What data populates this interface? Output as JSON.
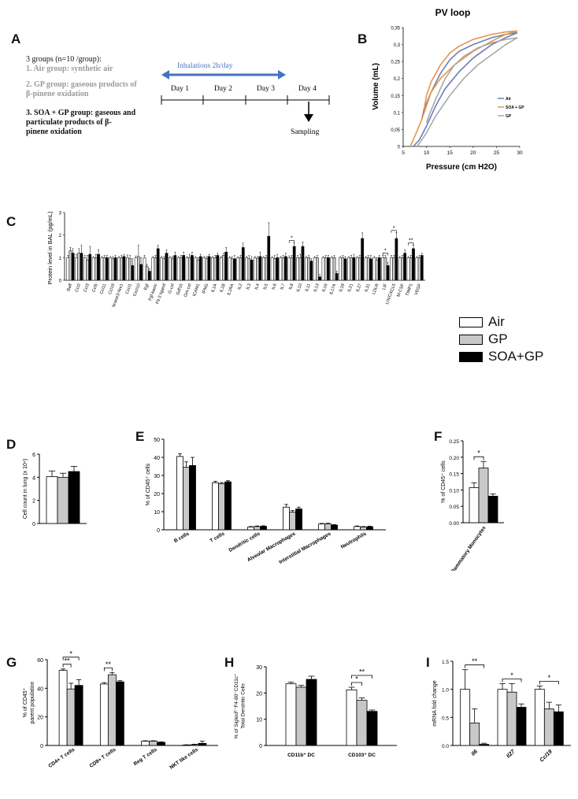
{
  "panels": {
    "A": "A",
    "B": "B",
    "C": "C",
    "D": "D",
    "E": "E",
    "F": "F",
    "G": "G",
    "H": "H",
    "I": "I"
  },
  "schema": {
    "groups_title": "3 groups (n=10 /group):",
    "items": [
      "1.  Air group: synthetic air",
      "2.  GP group: gaseous products of",
      "     β-pinene oxidation",
      "3.  SOA + GP group: gaseous and",
      "     particulate products of β-",
      "     pinene oxidation"
    ],
    "inhalation_label": "Inhalations 2h/day",
    "days": [
      "Day 1",
      "Day 2",
      "Day 3",
      "Day 4"
    ],
    "sampling_label": "Sampling",
    "colors": {
      "arrow": "#4472c4",
      "grey_text": "#9a9a9a"
    }
  },
  "legend": {
    "items": [
      {
        "name": "Air",
        "color": "#ffffff"
      },
      {
        "name": "GP",
        "color": "#c8c8c8"
      },
      {
        "name": "SOA+GP",
        "color": "#000000"
      }
    ]
  },
  "chart_data": [
    {
      "panel": "B",
      "type": "line",
      "title": "PV loop",
      "xlabel": "Pressure (cm H2O)",
      "ylabel": "Volume (mL)",
      "xlim": [
        5,
        30
      ],
      "ylim": [
        0,
        0.35
      ],
      "xticks": [
        5,
        10,
        15,
        20,
        25,
        30
      ],
      "yticks": [
        0,
        0.05,
        0.1,
        0.15,
        0.2,
        0.25,
        0.3,
        0.35
      ],
      "ytick_labels": [
        "0",
        "0,05",
        "0,1",
        "0,15",
        "0,2",
        "0,25",
        "0,3",
        "0,35"
      ],
      "legend_position": "right",
      "series": [
        {
          "name": "Air",
          "color": "#6a7fb8",
          "inflation": [
            [
              7.2,
              0
            ],
            [
              8.5,
              0.02
            ],
            [
              10,
              0.06
            ],
            [
              12,
              0.12
            ],
            [
              14,
              0.17
            ],
            [
              17,
              0.22
            ],
            [
              20,
              0.26
            ],
            [
              24,
              0.3
            ],
            [
              27,
              0.32
            ],
            [
              29.5,
              0.335
            ]
          ],
          "deflation": [
            [
              29.5,
              0.335
            ],
            [
              27,
              0.33
            ],
            [
              24,
              0.32
            ],
            [
              20,
              0.3
            ],
            [
              17,
              0.28
            ],
            [
              15,
              0.255
            ],
            [
              13,
              0.215
            ],
            [
              11,
              0.16
            ],
            [
              9.5,
              0.11
            ],
            [
              9,
              0.08
            ]
          ]
        },
        {
          "name": "SOA + GP",
          "color": "#e8944a",
          "inflation": [
            [
              6.5,
              0
            ],
            [
              7.5,
              0.03
            ],
            [
              9,
              0.08
            ],
            [
              11,
              0.16
            ],
            [
              13,
              0.2
            ],
            [
              16,
              0.24
            ],
            [
              20,
              0.28
            ],
            [
              24,
              0.31
            ],
            [
              27,
              0.33
            ],
            [
              29.5,
              0.34
            ]
          ],
          "deflation": [
            [
              29.5,
              0.34
            ],
            [
              27,
              0.337
            ],
            [
              24,
              0.33
            ],
            [
              20,
              0.315
            ],
            [
              17,
              0.295
            ],
            [
              15,
              0.275
            ],
            [
              13,
              0.24
            ],
            [
              11,
              0.19
            ],
            [
              10,
              0.15
            ],
            [
              9.5,
              0.11
            ]
          ]
        },
        {
          "name": "GP",
          "color": "#a8a8a8",
          "inflation": [
            [
              8,
              0
            ],
            [
              9,
              0.02
            ],
            [
              10,
              0.04
            ],
            [
              12,
              0.09
            ],
            [
              15,
              0.15
            ],
            [
              18,
              0.2
            ],
            [
              21,
              0.24
            ],
            [
              24,
              0.27
            ],
            [
              27,
              0.3
            ],
            [
              29.5,
              0.32
            ]
          ],
          "deflation": [
            [
              29.5,
              0.32
            ],
            [
              27,
              0.315
            ],
            [
              24,
              0.305
            ],
            [
              21,
              0.29
            ],
            [
              18,
              0.265
            ],
            [
              16,
              0.24
            ],
            [
              14,
              0.2
            ],
            [
              12,
              0.14
            ],
            [
              10.5,
              0.09
            ],
            [
              10,
              0.07
            ]
          ]
        }
      ]
    },
    {
      "panel": "C",
      "type": "bar",
      "ylabel": "Protein level in BAL (pg/mL)",
      "ylim": [
        0,
        3
      ],
      "yticks": [
        0,
        1,
        2,
        3
      ],
      "categories": [
        "Baff",
        "Ccl2",
        "Ccl3",
        "Ccl5",
        "Ccl11",
        "Ccl19",
        "Chitinase3-like1",
        "Cxcl1",
        "Cxcl10",
        "Egf",
        "Fgf-basic",
        "Flt-3 ligand",
        "G-csf",
        "Gdf15",
        "Gm-csf",
        "ICAM1",
        "IFNG",
        "IL1A",
        "IL1B",
        "IL1RA",
        "IL2",
        "IL3",
        "IL4",
        "IL5",
        "IL6",
        "IL7",
        "IL8",
        "IL10",
        "IL11",
        "IL13",
        "IL16",
        "IL17A",
        "IL18",
        "IL21",
        "IL27",
        "IL31",
        "LDLR",
        "LIF",
        "LIX/CXCL5",
        "M-CSF",
        "TIMP1",
        "VEGF"
      ],
      "series": [
        {
          "name": "Air",
          "values": [
            1,
            1,
            1,
            1,
            1,
            1,
            1,
            1,
            1,
            1,
            1,
            1,
            1,
            1,
            1,
            1,
            1,
            1,
            1,
            1,
            1,
            1,
            1,
            1,
            1,
            1,
            1,
            1,
            1,
            1,
            1,
            1,
            1,
            1,
            1,
            1,
            1,
            1,
            1,
            1,
            1,
            1
          ],
          "errors": [
            0.1,
            0.15,
            0.1,
            0.05,
            0.05,
            0.05,
            0.05,
            0.12,
            0.08,
            0.1,
            0.05,
            0.05,
            0.05,
            0.05,
            0.05,
            0.05,
            0.05,
            0.05,
            0.05,
            0.05,
            0.05,
            0.05,
            0.05,
            0.05,
            0.05,
            0.05,
            0.08,
            0.1,
            0.05,
            0.05,
            0.05,
            0.05,
            0.05,
            0.05,
            0.05,
            0.05,
            0.05,
            0.1,
            0.1,
            0.05,
            0.05,
            0.05
          ]
        },
        {
          "name": "GP",
          "values": [
            1.3,
            1.2,
            0.9,
            1.0,
            1.0,
            0.95,
            1.0,
            0.95,
            1.05,
            0.6,
            1.0,
            0.95,
            0.95,
            1.0,
            1.0,
            0.9,
            0.95,
            1.0,
            1.1,
            0.95,
            1.0,
            0.95,
            0.95,
            1.0,
            0.95,
            1.0,
            1.0,
            1.0,
            1.0,
            1.0,
            1.0,
            1.0,
            1.0,
            1.0,
            1.0,
            1.0,
            0.9,
            1.0,
            1.0,
            1.0,
            1.0,
            1.0
          ],
          "errors": [
            0.15,
            0.2,
            0.2,
            0.15,
            0.1,
            0.1,
            0.1,
            0.15,
            0.5,
            0.1,
            0.1,
            0.1,
            0.1,
            0.1,
            0.15,
            0.1,
            0.1,
            0.1,
            0.1,
            0.1,
            0.1,
            0.15,
            0.1,
            0.1,
            0.15,
            0.1,
            0.1,
            0.15,
            0.1,
            0.1,
            0.1,
            0.1,
            0.1,
            0.1,
            0.1,
            0.1,
            0.1,
            0.1,
            0.1,
            0.1,
            0.1,
            0.1
          ]
        },
        {
          "name": "SOA+GP",
          "values": [
            1.2,
            1.2,
            1.15,
            1.15,
            1.0,
            1.0,
            1.05,
            0.65,
            0.7,
            0.4,
            1.4,
            1.2,
            1.1,
            1.1,
            1.1,
            1.05,
            1.05,
            1.1,
            1.25,
            0.95,
            1.45,
            0.9,
            1.05,
            1.95,
            1.0,
            1.05,
            1.5,
            1.5,
            0.85,
            0.15,
            1.0,
            0.3,
            0.95,
            1.0,
            1.85,
            0.95,
            1.0,
            0.65,
            1.85,
            1.2,
            1.4,
            1.1
          ],
          "errors": [
            0.2,
            0.35,
            0.35,
            0.2,
            0.1,
            0.1,
            0.1,
            0.3,
            0.3,
            0.1,
            0.15,
            0.15,
            0.15,
            0.15,
            0.15,
            0.1,
            0.1,
            0.1,
            0.2,
            0.15,
            0.2,
            0.15,
            0.2,
            0.6,
            0.15,
            0.15,
            0.15,
            0.2,
            0.1,
            0.1,
            0.1,
            0.1,
            0.1,
            0.15,
            0.25,
            0.15,
            0.1,
            0.15,
            0.25,
            0.15,
            0.15,
            0.1
          ]
        }
      ],
      "annotations": [
        {
          "category": "IL8",
          "text": "*"
        },
        {
          "category": "LIF",
          "text": "*"
        },
        {
          "category": "LIX/CXCL5",
          "text": "*"
        },
        {
          "category": "TIMP1",
          "text": "**"
        }
      ]
    },
    {
      "panel": "D",
      "type": "bar",
      "ylabel": "Cell count in lung (x 10⁴)",
      "ylim": [
        0,
        6
      ],
      "yticks": [
        0,
        2,
        4,
        6
      ],
      "categories": [
        ""
      ],
      "series": [
        {
          "name": "Air",
          "values": [
            4.05
          ],
          "errors": [
            0.5
          ]
        },
        {
          "name": "GP",
          "values": [
            4.0
          ],
          "errors": [
            0.35
          ]
        },
        {
          "name": "SOA+GP",
          "values": [
            4.5
          ],
          "errors": [
            0.45
          ]
        }
      ]
    },
    {
      "panel": "E",
      "type": "bar",
      "ylabel": "% of CD45⁺ cells",
      "ylim": [
        0,
        50
      ],
      "yticks": [
        0,
        10,
        20,
        30,
        40,
        50
      ],
      "categories": [
        "B cells",
        "T cells",
        "Dendritic cells",
        "Alveolar Macrophages",
        "Interstitial Macrophages",
        "Neutrophils"
      ],
      "series": [
        {
          "name": "Air",
          "values": [
            40.5,
            26,
            1.5,
            12.5,
            3.2,
            1.8
          ],
          "errors": [
            1.5,
            0.8,
            0.3,
            1.5,
            0.3,
            0.3
          ]
        },
        {
          "name": "GP",
          "values": [
            34.5,
            25.5,
            1.8,
            9.8,
            3.3,
            1.5
          ],
          "errors": [
            3.0,
            0.6,
            0.3,
            0.8,
            0.3,
            0.3
          ]
        },
        {
          "name": "SOA+GP",
          "values": [
            35.5,
            26.5,
            1.9,
            11.5,
            2.6,
            1.7
          ],
          "errors": [
            4.5,
            0.6,
            0.3,
            1.0,
            0.3,
            0.3
          ]
        }
      ]
    },
    {
      "panel": "F",
      "type": "bar",
      "ylabel": "% of CD45⁺ cells",
      "ylim": [
        0,
        0.25
      ],
      "yticks": [
        0,
        0.05,
        0.1,
        0.15,
        0.2,
        0.25
      ],
      "ytick_labels": [
        "0.00",
        "0.05",
        "0.10",
        "0.15",
        "0.20",
        "0.25"
      ],
      "categories": [
        "Inflammatory Monocytes"
      ],
      "series": [
        {
          "name": "Air",
          "values": [
            0.107
          ],
          "errors": [
            0.015
          ]
        },
        {
          "name": "GP",
          "values": [
            0.167
          ],
          "errors": [
            0.02
          ]
        },
        {
          "name": "SOA+GP",
          "values": [
            0.081
          ],
          "errors": [
            0.007
          ]
        }
      ],
      "annotations": [
        {
          "pair": [
            "Air",
            "GP"
          ],
          "text": "*"
        }
      ]
    },
    {
      "panel": "G",
      "type": "bar",
      "ylabel": "% of CD45⁺ parent population",
      "ylim": [
        0,
        60
      ],
      "yticks": [
        0,
        20,
        40,
        60
      ],
      "categories": [
        "CD4+ T cells",
        "CD8+ T cells",
        "Reg T cells",
        "NKT like cells"
      ],
      "series": [
        {
          "name": "Air",
          "values": [
            52.5,
            43,
            3,
            0.3
          ],
          "errors": [
            1.0,
            1.0,
            0.3,
            0.2
          ]
        },
        {
          "name": "GP",
          "values": [
            39.5,
            49.5,
            3,
            0.6
          ],
          "errors": [
            4.0,
            1.5,
            0.3,
            0.3
          ]
        },
        {
          "name": "SOA+GP",
          "values": [
            42,
            44.5,
            2.2,
            1.5
          ],
          "errors": [
            4.0,
            0.8,
            0.3,
            1.5
          ]
        }
      ],
      "annotations": [
        {
          "category": "CD4+ T cells",
          "pair": [
            "Air",
            "GP"
          ],
          "text": "**"
        },
        {
          "category": "CD4+ T cells",
          "pair": [
            "Air",
            "SOA+GP"
          ],
          "text": "*"
        },
        {
          "category": "CD8+ T cells",
          "pair": [
            "Air",
            "GP"
          ],
          "text": "**"
        }
      ]
    },
    {
      "panel": "H",
      "type": "bar",
      "ylabel": "% of SiglecF⁻F4-80⁻CD11c⁺ Total Dendritic Cells",
      "ylim": [
        0,
        30
      ],
      "yticks": [
        0,
        10,
        20,
        30
      ],
      "categories": [
        "CD11b⁺ DC",
        "CD103⁺ DC"
      ],
      "series": [
        {
          "name": "Air",
          "values": [
            23.5,
            21.2
          ],
          "errors": [
            0.6,
            1.0
          ]
        },
        {
          "name": "GP",
          "values": [
            22.2,
            17.2
          ],
          "errors": [
            0.7,
            0.9
          ]
        },
        {
          "name": "SOA+GP",
          "values": [
            25.2,
            13.0
          ],
          "errors": [
            1.2,
            0.5
          ]
        }
      ],
      "annotations": [
        {
          "category": "CD103⁺ DC",
          "pair": [
            "Air",
            "GP"
          ],
          "text": "*"
        },
        {
          "category": "CD103⁺ DC",
          "pair": [
            "Air",
            "SOA+GP"
          ],
          "text": "**"
        }
      ]
    },
    {
      "panel": "I",
      "type": "bar",
      "ylabel": "mRNA fold change",
      "ylim": [
        0,
        1.5
      ],
      "yticks": [
        0,
        0.5,
        1.0,
        1.5
      ],
      "ytick_labels": [
        "0.0",
        "0.5",
        "1.0",
        "1.5"
      ],
      "categories": [
        "Il6",
        "Il27",
        "Ccl19"
      ],
      "series": [
        {
          "name": "Air",
          "values": [
            1.0,
            1.0,
            1.0
          ],
          "errors": [
            0.35,
            0.1,
            0.06
          ]
        },
        {
          "name": "GP",
          "values": [
            0.4,
            0.95,
            0.65
          ],
          "errors": [
            0.25,
            0.15,
            0.12
          ]
        },
        {
          "name": "SOA+GP",
          "values": [
            0.02,
            0.68,
            0.6
          ],
          "errors": [
            0.02,
            0.06,
            0.12
          ]
        }
      ],
      "annotations": [
        {
          "category": "Il6",
          "pair": [
            "Air",
            "SOA+GP"
          ],
          "text": "**"
        },
        {
          "category": "Il27",
          "pair": [
            "Air",
            "SOA+GP"
          ],
          "text": "*"
        },
        {
          "category": "Ccl19",
          "pair": [
            "Air",
            "SOA+GP"
          ],
          "text": "*"
        }
      ]
    }
  ]
}
